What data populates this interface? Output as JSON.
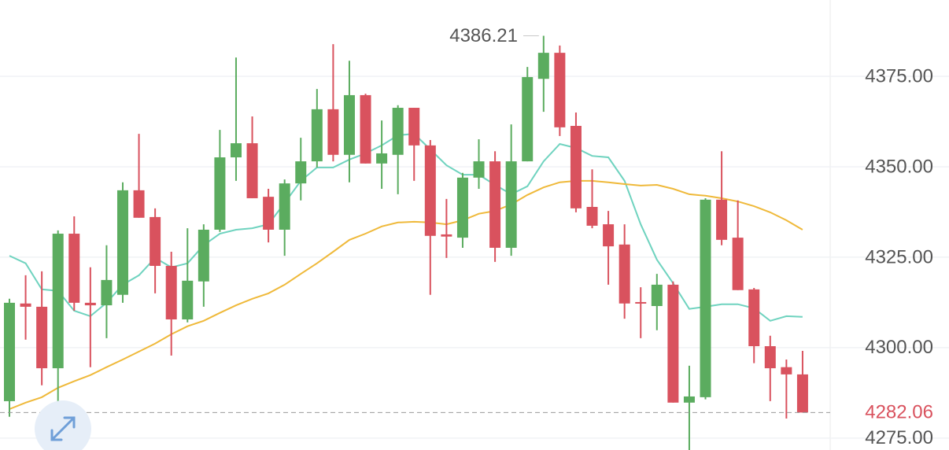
{
  "chart_data": {
    "type": "candlestick",
    "open": [
      4285.2,
      4312.2,
      4311.3,
      4294.3,
      4331.5,
      4312.4,
      4311.7,
      4314.6,
      4343.5,
      4336.1,
      4322.6,
      4307.8,
      4318.3,
      4332.6,
      4352.6,
      4356.5,
      4341.7,
      4332.6,
      4345.4,
      4351.5,
      4365.9,
      4353.3,
      4369.8,
      4350.9,
      4353.3,
      4366.3,
      4355.9,
      4331.3,
      4330.4,
      4347,
      4351.5,
      4327.6,
      4351.5,
      4374.3,
      4381.5,
      4361.3,
      4338.9,
      4334.1,
      4328.5,
      4312.6,
      4311.5,
      4317.4,
      4284.8,
      4286.3,
      4340.9,
      4330.4,
      4316.1,
      4300.4,
      4294.6,
      4292.6
    ],
    "close": [
      4312.4,
      4311.3,
      4294.3,
      4331.5,
      4312.4,
      4311.7,
      4318.7,
      4343.5,
      4335.9,
      4322.6,
      4307.8,
      4318.5,
      4332.6,
      4352.6,
      4356.5,
      4341.3,
      4332.6,
      4345.4,
      4351.5,
      4365.9,
      4353.3,
      4369.8,
      4350.9,
      4353.7,
      4366.3,
      4355.9,
      4330.9,
      4330.7,
      4347,
      4351.5,
      4327.6,
      4351.5,
      4374.8,
      4381.5,
      4360.9,
      4338.5,
      4333.7,
      4328,
      4312.2,
      4312.2,
      4317.4,
      4284.8,
      4286.5,
      4340.9,
      4329.8,
      4315.9,
      4300.4,
      4294.3,
      4292.6,
      4282.06
    ],
    "high": [
      4313.5,
      4320,
      4321.1,
      4332.4,
      4336.3,
      4322.2,
      4328.3,
      4345.7,
      4359.1,
      4338.5,
      4326.5,
      4333,
      4334.1,
      4360.2,
      4380.2,
      4363.9,
      4343.9,
      4346.5,
      4358,
      4371.5,
      4383.9,
      4379.3,
      4370.2,
      4362.8,
      4367,
      4366.3,
      4357.4,
      4341.1,
      4348.3,
      4357.6,
      4354.3,
      4361.7,
      4377.6,
      4386.21,
      4383.5,
      4365,
      4349.3,
      4337.8,
      4334.1,
      4316.7,
      4320.4,
      4318.3,
      4295,
      4341.3,
      4354.3,
      4340.7,
      4316.5,
      4303.3,
      4296.7,
      4299.1
    ],
    "low": [
      4280.9,
      4302.2,
      4289.6,
      4278.7,
      4310.2,
      4294.6,
      4302.6,
      4312.4,
      4335.9,
      4315,
      4297.8,
      4307,
      4311.3,
      4332,
      4346.1,
      4341.3,
      4329.1,
      4325.4,
      4340.7,
      4349.8,
      4351.5,
      4345.7,
      4350.9,
      4343.9,
      4342.4,
      4346.1,
      4314.6,
      4324.8,
      4327.6,
      4343.9,
      4323.7,
      4325.4,
      4351.5,
      4365.2,
      4358.5,
      4337.4,
      4333,
      4317.4,
      4308,
      4302.6,
      4304.8,
      4284.8,
      4271.7,
      4285.7,
      4328.3,
      4315.9,
      4295.7,
      4285.2,
      4280.4,
      4282.06
    ],
    "up_color": "#5bac5f",
    "down_color": "#d9525e",
    "ma_lines": [
      {
        "color": "#6fd3bf",
        "values": [
          4325.4,
          4323.3,
          4316.1,
          4315.7,
          4310.2,
          4308.7,
          4312.4,
          4317.4,
          4320,
          4324.8,
          4322.2,
          4323.3,
          4328.3,
          4331.5,
          4332.6,
          4333,
          4334.1,
          4340,
          4346.1,
          4349.8,
          4349.8,
          4352,
          4353.7,
          4355.9,
          4358.7,
          4359.1,
          4354.8,
          4350.4,
          4347.8,
          4347.8,
          4345,
          4342.4,
          4344.6,
          4351.5,
          4356.3,
          4355.2,
          4353,
          4352.6,
          4346.1,
          4334.1,
          4324.3,
          4317.8,
          4310.7,
          4311.3,
          4312,
          4312,
          4310.9,
          4307.4,
          4308.7,
          4308.5
        ]
      },
      {
        "color": "#efb93a",
        "values": [
          4283,
          4284.8,
          4286.3,
          4288.9,
          4290.7,
          4292.4,
          4294.6,
          4296.7,
          4298.9,
          4301.1,
          4303.7,
          4305.9,
          4307.4,
          4309.6,
          4311.7,
          4313.5,
          4315,
          4317.4,
          4320.4,
          4323.3,
          4326.5,
          4329.8,
          4331.5,
          4333.5,
          4334.6,
          4334.8,
          4334.6,
          4334.1,
          4335.2,
          4337,
          4337.8,
          4339.6,
          4342.2,
          4344.3,
          4345.7,
          4346.1,
          4346.1,
          4345.7,
          4345.2,
          4344.8,
          4345,
          4343.9,
          4342.4,
          4342,
          4341.3,
          4340.4,
          4339.1,
          4337.4,
          4335.2,
          4332.6
        ]
      }
    ],
    "ylim": [
      4271.7,
      4396.1
    ],
    "yticks": [
      {
        "value": 4275,
        "label": "4275.00"
      },
      {
        "value": 4300,
        "label": "4300.00"
      },
      {
        "value": 4325,
        "label": "4325.00"
      },
      {
        "value": 4350,
        "label": "4350.00"
      },
      {
        "value": 4375,
        "label": "4375.00"
      }
    ],
    "grid": true,
    "max_high": 4386.21,
    "last_price": 4282.06
  }
}
